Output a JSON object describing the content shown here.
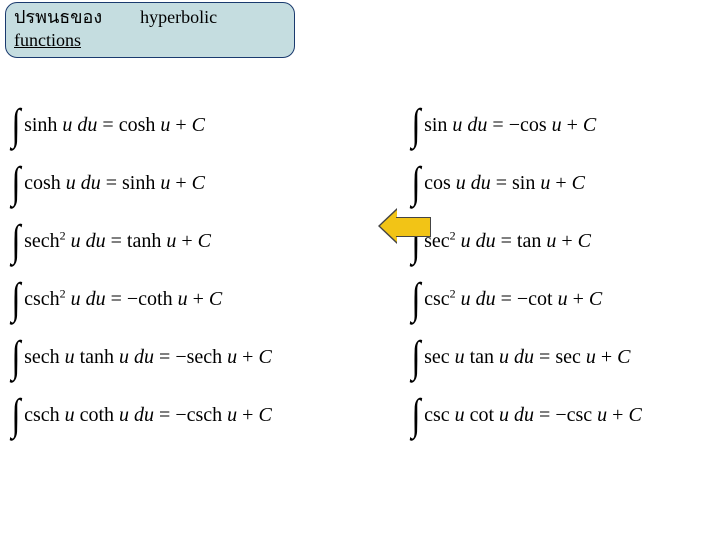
{
  "title": {
    "thai": "ปรพนธของ",
    "english": "hyperbolic",
    "line2": "functions",
    "box_bg": "#c5dde0",
    "box_border": "#1a3a6e"
  },
  "arrow": {
    "fill": "#f2c416",
    "stroke": "#444444"
  },
  "formulas": {
    "left": [
      {
        "fn": "sinh",
        "res": "cosh",
        "sign": "",
        "sq": false,
        "fn2": ""
      },
      {
        "fn": "cosh",
        "res": "sinh",
        "sign": "",
        "sq": false,
        "fn2": ""
      },
      {
        "fn": "sech",
        "res": "tanh",
        "sign": "",
        "sq": true,
        "fn2": ""
      },
      {
        "fn": "csch",
        "res": "coth",
        "sign": "−",
        "sq": true,
        "fn2": ""
      },
      {
        "fn": "sech",
        "res": "sech",
        "sign": "−",
        "sq": false,
        "fn2": "tanh"
      },
      {
        "fn": "csch",
        "res": "csch",
        "sign": "−",
        "sq": false,
        "fn2": "coth"
      }
    ],
    "right": [
      {
        "fn": "sin",
        "res": "cos",
        "sign": "−",
        "sq": false,
        "fn2": ""
      },
      {
        "fn": "cos",
        "res": "sin",
        "sign": "",
        "sq": false,
        "fn2": ""
      },
      {
        "fn": "sec",
        "res": "tan",
        "sign": "",
        "sq": true,
        "fn2": ""
      },
      {
        "fn": "csc",
        "res": "cot",
        "sign": "−",
        "sq": true,
        "fn2": ""
      },
      {
        "fn": "sec",
        "res": "sec",
        "sign": "",
        "sq": false,
        "fn2": "tan"
      },
      {
        "fn": "csc",
        "res": "csc",
        "sign": "−",
        "sq": false,
        "fn2": "cot"
      }
    ]
  }
}
